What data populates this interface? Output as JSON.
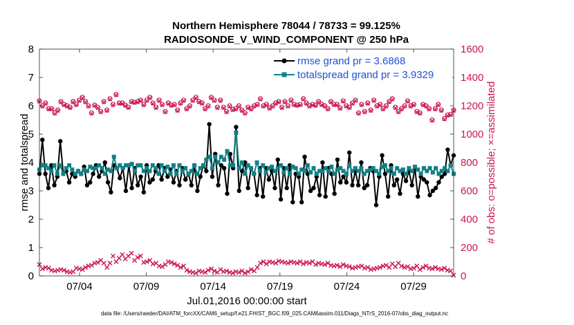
{
  "chart_data": {
    "type": "line",
    "title": "Northern Hemisphere 78044 / 78733 = 99.125%",
    "subtitle": "RADIOSONDE_V_WIND_COMPONENT @ 250 hPa",
    "xlabel": "Jul.01,2016 00:00:00 start",
    "ylabel_left": "rmse and totalspread",
    "ylabel_right": "# of obs: o=possible; ×=assimilated",
    "ylim_left": [
      0,
      8
    ],
    "ylim_right": [
      0,
      1600
    ],
    "yticks_left": [
      "0",
      "1",
      "2",
      "3",
      "4",
      "5",
      "6",
      "7",
      "8"
    ],
    "yticks_right": [
      "0",
      "200",
      "400",
      "600",
      "800",
      "1000",
      "1200",
      "1400",
      "1600"
    ],
    "xlim_days": [
      1,
      32
    ],
    "xticks": [
      {
        "day": 4,
        "label": "07/04"
      },
      {
        "day": 9,
        "label": "07/09"
      },
      {
        "day": 14,
        "label": "07/14"
      },
      {
        "day": 19,
        "label": "07/19"
      },
      {
        "day": 24,
        "label": "07/24"
      },
      {
        "day": 29,
        "label": "07/29"
      }
    ],
    "colors": {
      "rmse": "#000000",
      "spread": "#138085",
      "obs": "#c8174f",
      "legend_text": "#1f50d8"
    },
    "series": [
      {
        "name": "rmse",
        "legend": "rmse grand pr = 3.6868",
        "values": [
          3.6,
          4.8,
          3.6,
          3.1,
          3.9,
          3.2,
          3.5,
          4.75,
          3.6,
          3.7,
          3.3,
          3.6,
          3.5,
          3.7,
          3.6,
          3.85,
          3.2,
          3.3,
          3.6,
          3.9,
          3.5,
          3.7,
          4.0,
          3.3,
          2.95,
          3.9,
          3.8,
          3.45,
          3.8,
          3.0,
          3.9,
          3.1,
          3.8,
          3.2,
          3.5,
          2.95,
          3.9,
          3.3,
          3.4,
          3.7,
          3.9,
          3.4,
          3.8,
          3.5,
          3.75,
          3.3,
          3.7,
          3.2,
          3.8,
          3.4,
          3.6,
          3.2,
          3.9,
          3.0,
          3.5,
          3.9,
          3.7,
          5.35,
          3.5,
          4.3,
          3.2,
          3.9,
          3.8,
          2.9,
          4.3,
          3.8,
          5.25,
          3.0,
          3.7,
          4.0,
          3.1,
          3.8,
          3.6,
          2.85,
          3.8,
          2.8,
          3.8,
          3.4,
          3.7,
          3.1,
          4.1,
          2.7,
          3.8,
          3.1,
          3.9,
          2.6,
          3.6,
          3.5,
          2.6,
          4.2,
          3.6,
          3.0,
          3.1,
          3.5,
          2.85,
          4.0,
          2.8,
          3.8,
          3.6,
          2.9,
          4.1,
          3.3,
          3.5,
          3.3,
          4.35,
          3.2,
          3.7,
          3.2,
          4.0,
          3.1,
          3.2,
          3.8,
          3.7,
          2.5,
          3.5,
          4.25,
          3.6,
          2.8,
          3.9,
          3.2,
          3.4,
          2.9,
          3.6,
          3.35,
          3.7,
          3.2,
          3.8,
          2.8,
          3.5,
          3.4,
          3.3,
          2.85,
          3.0,
          3.1,
          3.3,
          3.5,
          3.6,
          4.45,
          3.9,
          4.25
        ]
      },
      {
        "name": "totalspread",
        "legend": "totalspread grand pr = 3.9329",
        "values": [
          3.75,
          3.9,
          3.9,
          3.8,
          3.7,
          3.9,
          3.6,
          3.9,
          3.6,
          3.8,
          3.9,
          3.75,
          3.6,
          3.7,
          3.6,
          3.75,
          3.7,
          3.85,
          3.8,
          3.8,
          3.9,
          3.8,
          3.6,
          3.75,
          3.7,
          4.2,
          3.8,
          3.9,
          3.8,
          3.9,
          3.9,
          3.95,
          3.7,
          3.9,
          3.9,
          3.7,
          3.8,
          3.7,
          3.9,
          3.8,
          3.6,
          3.9,
          3.7,
          3.85,
          3.6,
          3.9,
          3.6,
          3.9,
          3.7,
          3.8,
          3.6,
          3.7,
          3.9,
          3.6,
          3.8,
          3.9,
          4.1,
          4.2,
          3.8,
          4.2,
          4.0,
          4.2,
          4.1,
          4.4,
          3.9,
          3.9,
          5.05,
          3.8,
          4.0,
          3.6,
          3.9,
          3.8,
          3.6,
          4.0,
          3.7,
          3.9,
          3.65,
          3.8,
          3.85,
          3.7,
          3.8,
          3.9,
          3.65,
          3.8,
          3.6,
          3.85,
          3.8,
          3.6,
          3.75,
          3.7,
          3.9,
          3.65,
          3.8,
          3.6,
          3.7,
          3.7,
          3.8,
          3.7,
          3.85,
          3.6,
          3.75,
          3.8,
          3.7,
          3.6,
          3.9,
          3.7,
          3.8,
          3.7,
          3.8,
          3.6,
          3.7,
          3.75,
          3.8,
          3.7,
          3.6,
          3.85,
          3.9,
          3.7,
          3.8,
          3.6,
          3.8,
          3.7,
          3.75,
          3.6,
          3.8,
          3.7,
          3.85,
          3.75,
          3.6,
          3.8,
          3.7,
          3.8,
          3.65,
          3.8,
          3.6,
          3.7,
          3.8,
          3.7,
          3.9,
          3.6
        ]
      },
      {
        "name": "obs_possible",
        "marker": "o",
        "values": [
          1235,
          1200,
          1220,
          1180,
          1180,
          1150,
          1170,
          1230,
          1210,
          1200,
          1190,
          1230,
          1210,
          1240,
          1260,
          1230,
          1200,
          1150,
          1205,
          1190,
          1160,
          1230,
          1170,
          1250,
          1210,
          1280,
          1220,
          1220,
          1205,
          1190,
          1230,
          1225,
          1230,
          1240,
          1210,
          1240,
          1260,
          1220,
          1190,
          1240,
          1210,
          1160,
          1220,
          1205,
          1210,
          1170,
          1220,
          1240,
          1180,
          1200,
          1240,
          1260,
          1230,
          1220,
          1180,
          1200,
          1260,
          1240,
          1190,
          1240,
          1190,
          1160,
          1200,
          1175,
          1180,
          1200,
          1170,
          1150,
          1190,
          1180,
          1200,
          1210,
          1250,
          1200,
          1210,
          1185,
          1200,
          1220,
          1230,
          1190,
          1230,
          1200,
          1240,
          1210,
          1205,
          1210,
          1250,
          1220,
          1200,
          1210,
          1205,
          1230,
          1210,
          1200,
          1180,
          1230,
          1210,
          1210,
          1185,
          1235,
          1200,
          1190,
          1220,
          1240,
          1150,
          1210,
          1160,
          1220,
          1170,
          1240,
          1200,
          1210,
          1180,
          1200,
          1230,
          1250,
          1190,
          1160,
          1180,
          1200,
          1235,
          1200,
          1210,
          1160,
          1150,
          1210,
          1200,
          1180,
          1100,
          1180,
          1210,
          1170,
          1110,
          1135,
          1140,
          1170
        ]
      },
      {
        "name": "obs_assimilated",
        "marker": "x",
        "values": [
          80,
          50,
          60,
          55,
          40,
          35,
          40,
          45,
          40,
          30,
          25,
          30,
          55,
          50,
          45,
          60,
          70,
          75,
          90,
          95,
          110,
          90,
          60,
          90,
          140,
          100,
          125,
          150,
          120,
          140,
          160,
          110,
          130,
          140,
          95,
          100,
          110,
          85,
          90,
          70,
          65,
          80,
          100,
          95,
          85,
          75,
          60,
          70,
          40,
          30,
          25,
          20,
          35,
          30,
          25,
          40,
          50,
          35,
          25,
          45,
          30,
          35,
          25,
          20,
          30,
          25,
          35,
          20,
          30,
          45,
          35,
          60,
          90,
          100,
          85,
          100,
          95,
          90,
          105,
          100,
          95,
          90,
          100,
          95,
          90,
          100,
          85,
          95,
          90,
          100,
          80,
          90,
          85,
          80,
          90,
          75,
          70,
          75,
          65,
          80,
          70,
          65,
          55,
          60,
          65,
          70,
          55,
          60,
          45,
          50,
          55,
          60,
          70,
          75,
          60,
          85,
          65,
          90,
          70,
          60,
          65,
          50,
          55,
          70,
          45,
          60,
          70,
          55,
          50,
          60,
          50,
          45,
          55,
          40,
          35,
          5
        ]
      }
    ]
  },
  "legend": {
    "rmse_label": "rmse grand pr = 3.6868",
    "spread_label": "totalspread grand pr = 3.9329"
  },
  "footnote": "data file: /Users/raeder/DAI/ATM_forcXX/CAM6_setup/f.e21.FHIST_BGC.f09_025.CAM6assim.011/Diags_NTrS_2016-07/obs_diag_output.nc"
}
